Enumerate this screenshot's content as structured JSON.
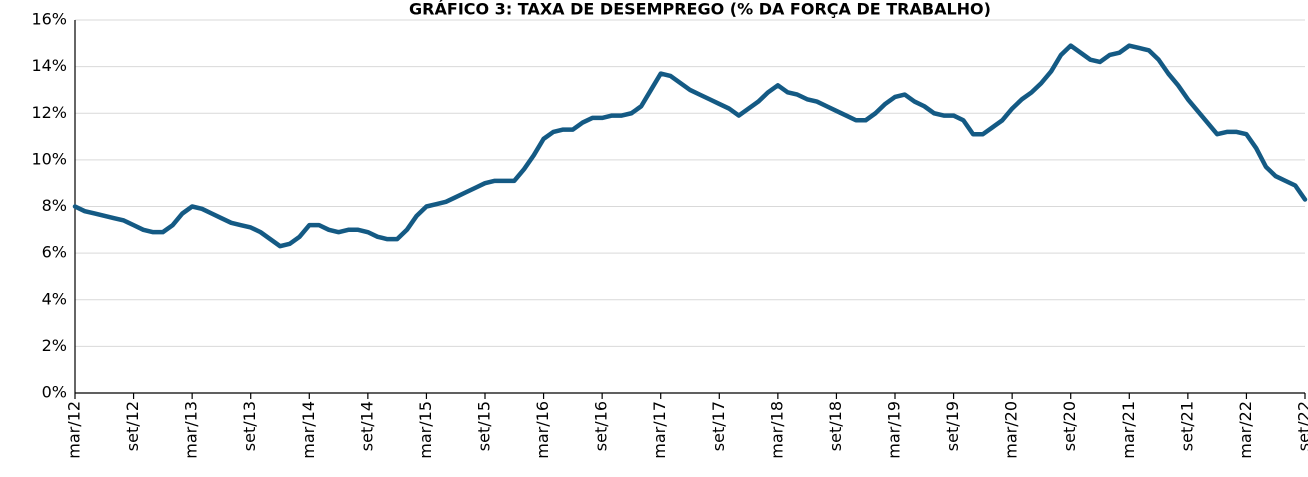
{
  "chart_data": {
    "type": "line",
    "title": "GRÁFICO 3: TAXA DE DESEMPREGO (% DA FORÇA DE TRABALHO)",
    "categories": [
      "mar/12",
      null,
      null,
      null,
      null,
      null,
      "set/12",
      null,
      null,
      null,
      null,
      null,
      "mar/13",
      null,
      null,
      null,
      null,
      null,
      "set/13",
      null,
      null,
      null,
      null,
      null,
      "mar/14",
      null,
      null,
      null,
      null,
      null,
      "set/14",
      null,
      null,
      null,
      null,
      null,
      "mar/15",
      null,
      null,
      null,
      null,
      null,
      "set/15",
      null,
      null,
      null,
      null,
      null,
      "mar/16",
      null,
      null,
      null,
      null,
      null,
      "set/16",
      null,
      null,
      null,
      null,
      null,
      "mar/17",
      null,
      null,
      null,
      null,
      null,
      "set/17",
      null,
      null,
      null,
      null,
      null,
      "mar/18",
      null,
      null,
      null,
      null,
      null,
      "set/18",
      null,
      null,
      null,
      null,
      null,
      "mar/19",
      null,
      null,
      null,
      null,
      null,
      "set/19",
      null,
      null,
      null,
      null,
      null,
      "mar/20",
      null,
      null,
      null,
      null,
      null,
      "set/20",
      null,
      null,
      null,
      null,
      null,
      "mar/21",
      null,
      null,
      null,
      null,
      null,
      "set/21",
      null,
      null,
      null,
      null,
      null,
      "mar/22",
      null,
      null,
      null,
      null,
      null,
      "set/22"
    ],
    "values": [
      8.0,
      7.8,
      7.7,
      7.6,
      7.5,
      7.4,
      7.2,
      7.0,
      6.9,
      6.9,
      7.2,
      7.7,
      8.0,
      7.9,
      7.7,
      7.5,
      7.3,
      7.2,
      7.1,
      6.9,
      6.6,
      6.3,
      6.4,
      6.7,
      7.2,
      7.2,
      7.0,
      6.9,
      7.0,
      7.0,
      6.9,
      6.7,
      6.6,
      6.6,
      7.0,
      7.6,
      8.0,
      8.1,
      8.2,
      8.4,
      8.6,
      8.8,
      9.0,
      9.1,
      9.1,
      9.1,
      9.6,
      10.2,
      10.9,
      11.2,
      11.3,
      11.3,
      11.6,
      11.8,
      11.8,
      11.9,
      11.9,
      12.0,
      12.3,
      13.0,
      13.7,
      13.6,
      13.3,
      13.0,
      12.8,
      12.6,
      12.4,
      12.2,
      11.9,
      12.2,
      12.5,
      12.9,
      13.2,
      12.9,
      12.8,
      12.6,
      12.5,
      12.3,
      12.1,
      11.9,
      11.7,
      11.7,
      12.0,
      12.4,
      12.7,
      12.8,
      12.5,
      12.3,
      12.0,
      11.9,
      11.9,
      11.7,
      11.1,
      11.1,
      11.4,
      11.7,
      12.2,
      12.6,
      12.9,
      13.3,
      13.8,
      14.5,
      14.9,
      14.6,
      14.3,
      14.2,
      14.5,
      14.6,
      14.9,
      14.8,
      14.7,
      14.3,
      13.7,
      13.2,
      12.6,
      12.1,
      11.6,
      11.1,
      11.2,
      11.2,
      11.1,
      10.5,
      9.7,
      9.3,
      9.1,
      8.9,
      8.3
    ],
    "color": "#145a84",
    "ylim": [
      0,
      16
    ],
    "yticks": [
      {
        "value": 0,
        "label": "0%"
      },
      {
        "value": 2,
        "label": "2%"
      },
      {
        "value": 4,
        "label": "4%"
      },
      {
        "value": 6,
        "label": "6%"
      },
      {
        "value": 8,
        "label": "8%"
      },
      {
        "value": 10,
        "label": "10%"
      },
      {
        "value": 12,
        "label": "12%"
      },
      {
        "value": 14,
        "label": "14%"
      },
      {
        "value": 16,
        "label": "16%"
      }
    ],
    "grid": true
  }
}
